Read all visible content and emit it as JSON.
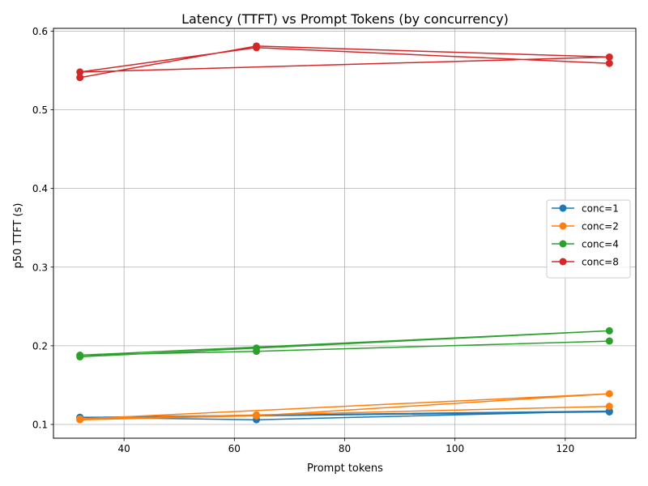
{
  "chart_data": {
    "type": "line",
    "title": "Latency (TTFT) vs Prompt Tokens (by concurrency)",
    "xlabel": "Prompt tokens",
    "ylabel": "p50 TTFT (s)",
    "xlim": [
      27.2,
      132.8
    ],
    "ylim": [
      0.0825,
      0.6035
    ],
    "xticks": [
      40,
      60,
      80,
      100,
      120
    ],
    "yticks": [
      0.1,
      0.2,
      0.3,
      0.4,
      0.5,
      0.6
    ],
    "xtick_labels": [
      "40",
      "60",
      "80",
      "100",
      120
    ],
    "ytick_labels": [
      "0.1",
      "0.2",
      "0.3",
      "0.4",
      "0.5",
      "0.6"
    ],
    "grid": true,
    "legend_position": "center-right",
    "series": [
      {
        "name": "conc=1",
        "color": "#1f77b4",
        "x": [
          32,
          64,
          128,
          32,
          64,
          128
        ],
        "y": [
          0.109,
          0.106,
          0.117,
          0.109,
          0.111,
          0.116
        ]
      },
      {
        "name": "conc=2",
        "color": "#ff7f0e",
        "x": [
          32,
          64,
          128,
          32,
          64,
          128
        ],
        "y": [
          0.106,
          0.111,
          0.139,
          0.107,
          0.112,
          0.123
        ]
      },
      {
        "name": "conc=4",
        "color": "#2ca02c",
        "x": [
          32,
          64,
          128,
          32,
          64,
          128
        ],
        "y": [
          0.186,
          0.197,
          0.219,
          0.188,
          0.193,
          0.206
        ]
      },
      {
        "name": "conc=8",
        "color": "#d62728",
        "x": [
          32,
          64,
          128,
          32,
          64,
          128
        ],
        "y": [
          0.541,
          0.581,
          0.567,
          0.548,
          0.579,
          0.559
        ]
      }
    ]
  }
}
